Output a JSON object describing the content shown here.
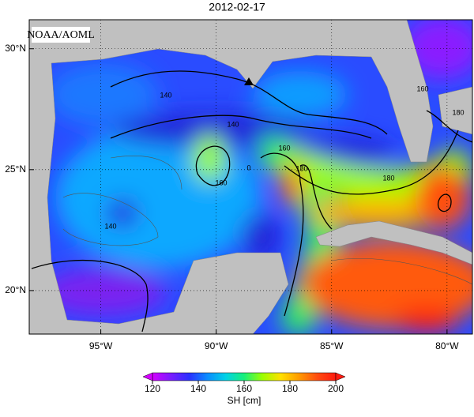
{
  "chart_data": {
    "type": "map",
    "title": "2012-02-17",
    "source": "NOAA/AOML",
    "xlim": [
      -98.1,
      -78.9
    ],
    "ylim": [
      18.2,
      31.2
    ],
    "xticks": [
      {
        "value": -95,
        "label": "95°W"
      },
      {
        "value": -90,
        "label": "90°W"
      },
      {
        "value": -85,
        "label": "85°W"
      },
      {
        "value": -80,
        "label": "80°W"
      }
    ],
    "yticks": [
      {
        "value": 20,
        "label": "20°N"
      },
      {
        "value": 25,
        "label": "25°N"
      },
      {
        "value": 30,
        "label": "30°N"
      }
    ],
    "grid": true,
    "contour_labels": [
      140,
      140,
      140,
      160,
      160,
      160,
      180,
      180,
      180,
      0
    ],
    "colorbar": {
      "label": "SH [cm]",
      "lim": [
        120,
        200
      ],
      "ticks": [
        120,
        140,
        160,
        180,
        200
      ],
      "colormap": [
        "#d400ff",
        "#7a1cff",
        "#2a30ff",
        "#0a8cff",
        "#00d2e6",
        "#18f07a",
        "#9cff00",
        "#ffe000",
        "#ff9a00",
        "#ff4c10",
        "#ff1a10"
      ]
    }
  }
}
